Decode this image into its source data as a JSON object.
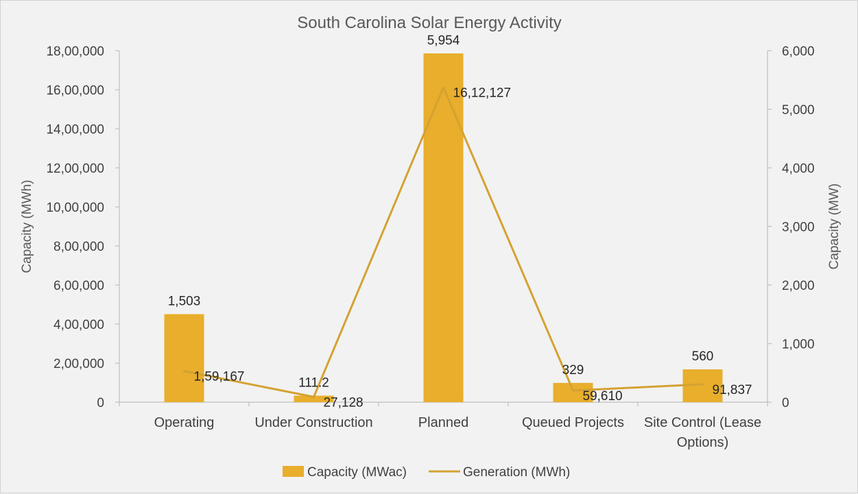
{
  "chart_data": {
    "type": "bar",
    "title": "South Carolina Solar Energy Activity",
    "categories": [
      "Operating",
      "Under Construction",
      "Planned",
      "Queued Projects",
      "Site Control (Lease Options)"
    ],
    "category_lines": [
      [
        "Operating"
      ],
      [
        "Under Construction"
      ],
      [
        "Planned"
      ],
      [
        "Queued Projects"
      ],
      [
        "Site Control (Lease",
        "Options)"
      ]
    ],
    "series": [
      {
        "name": "Capacity (MWac)",
        "type": "bar",
        "axis": "right",
        "values": [
          1503,
          111.2,
          5954,
          329,
          560
        ],
        "labels": [
          "1,503",
          "111.2",
          "5,954",
          "329",
          "560"
        ],
        "color": "#E8AE2C"
      },
      {
        "name": "Generation (MWh)",
        "type": "line",
        "axis": "left",
        "values": [
          159167,
          27128,
          1612127,
          59610,
          91837
        ],
        "labels": [
          "1,59,167",
          "27,128",
          "16,12,127",
          "59,610",
          "91,837"
        ],
        "color": "#D4A232"
      }
    ],
    "y_left": {
      "label": "Capacity (MWh)",
      "ylim": [
        0,
        1800000
      ],
      "ticks": [
        0,
        200000,
        400000,
        600000,
        800000,
        1000000,
        1200000,
        1400000,
        1600000,
        1800000
      ],
      "tick_labels": [
        "0",
        "2,00,000",
        "4,00,000",
        "6,00,000",
        "8,00,000",
        "10,00,000",
        "12,00,000",
        "14,00,000",
        "16,00,000",
        "18,00,000"
      ]
    },
    "y_right": {
      "label": "Capacity (MW)",
      "ylim": [
        0,
        6000
      ],
      "ticks": [
        0,
        1000,
        2000,
        3000,
        4000,
        5000,
        6000
      ],
      "tick_labels": [
        "0",
        "1,000",
        "2,000",
        "3,000",
        "4,000",
        "5,000",
        "6,000"
      ]
    },
    "grid": false,
    "legend": "bottom"
  }
}
